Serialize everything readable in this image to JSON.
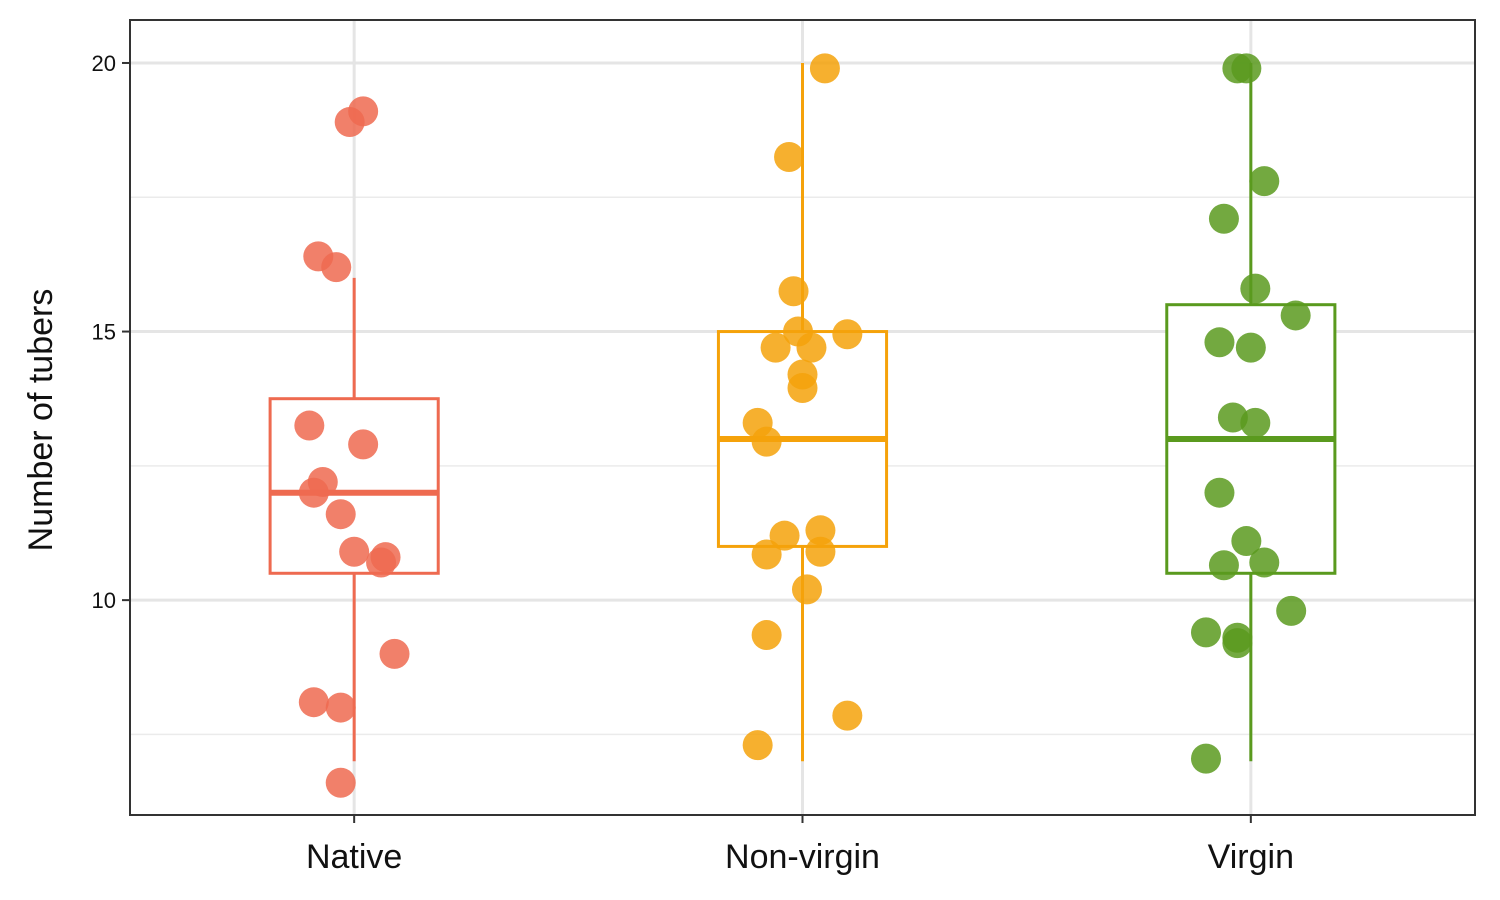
{
  "chart_data": {
    "type": "box",
    "title": "",
    "xlabel": "",
    "ylabel": "Number of tubers",
    "categories": [
      "Native",
      "Non-virgin",
      "Virgin"
    ],
    "ylim": [
      6.0,
      20.8
    ],
    "yticks": [
      10,
      15,
      20
    ],
    "y_minor_ticks": [
      7.5,
      12.5,
      17.5
    ],
    "grid": true,
    "legend": "none",
    "series": [
      {
        "category": "Native",
        "color": "#EE6A50",
        "box": {
          "lower_whisker": 7.0,
          "q1": 10.5,
          "median": 12.0,
          "q3": 13.75,
          "upper_whisker": 16.0
        },
        "points": [
          {
            "dx": 0.02,
            "y": 19.1
          },
          {
            "dx": -0.01,
            "y": 18.9
          },
          {
            "dx": -0.08,
            "y": 16.4
          },
          {
            "dx": -0.04,
            "y": 16.2
          },
          {
            "dx": -0.1,
            "y": 13.25
          },
          {
            "dx": 0.02,
            "y": 12.9
          },
          {
            "dx": -0.07,
            "y": 12.2
          },
          {
            "dx": -0.09,
            "y": 12.0
          },
          {
            "dx": -0.03,
            "y": 11.6
          },
          {
            "dx": 0.0,
            "y": 10.9
          },
          {
            "dx": 0.07,
            "y": 10.8
          },
          {
            "dx": 0.06,
            "y": 10.7
          },
          {
            "dx": 0.09,
            "y": 9.0
          },
          {
            "dx": -0.09,
            "y": 8.1
          },
          {
            "dx": -0.03,
            "y": 8.0
          },
          {
            "dx": -0.03,
            "y": 6.6
          }
        ]
      },
      {
        "category": "Non-virgin",
        "color": "#F5A20A",
        "box": {
          "lower_whisker": 7.0,
          "q1": 11.0,
          "median": 13.0,
          "q3": 15.0,
          "upper_whisker": 20.0
        },
        "points": [
          {
            "dx": 0.05,
            "y": 19.9
          },
          {
            "dx": -0.03,
            "y": 18.25
          },
          {
            "dx": -0.02,
            "y": 15.75
          },
          {
            "dx": -0.01,
            "y": 15.0
          },
          {
            "dx": 0.1,
            "y": 14.95
          },
          {
            "dx": -0.06,
            "y": 14.7
          },
          {
            "dx": 0.02,
            "y": 14.7
          },
          {
            "dx": 0.0,
            "y": 14.2
          },
          {
            "dx": 0.0,
            "y": 13.95
          },
          {
            "dx": -0.1,
            "y": 13.3
          },
          {
            "dx": -0.08,
            "y": 12.95
          },
          {
            "dx": 0.04,
            "y": 11.3
          },
          {
            "dx": -0.04,
            "y": 11.2
          },
          {
            "dx": -0.08,
            "y": 10.85
          },
          {
            "dx": 0.04,
            "y": 10.9
          },
          {
            "dx": 0.01,
            "y": 10.2
          },
          {
            "dx": -0.08,
            "y": 9.35
          },
          {
            "dx": 0.1,
            "y": 7.85
          },
          {
            "dx": -0.1,
            "y": 7.3
          }
        ]
      },
      {
        "category": "Virgin",
        "color": "#5A9A1E",
        "box": {
          "lower_whisker": 7.0,
          "q1": 10.5,
          "median": 13.0,
          "q3": 15.5,
          "upper_whisker": 20.0
        },
        "points": [
          {
            "dx": -0.03,
            "y": 19.9
          },
          {
            "dx": -0.01,
            "y": 19.9
          },
          {
            "dx": 0.03,
            "y": 17.8
          },
          {
            "dx": -0.06,
            "y": 17.1
          },
          {
            "dx": 0.01,
            "y": 15.8
          },
          {
            "dx": 0.1,
            "y": 15.3
          },
          {
            "dx": -0.07,
            "y": 14.8
          },
          {
            "dx": 0.0,
            "y": 14.7
          },
          {
            "dx": -0.04,
            "y": 13.4
          },
          {
            "dx": 0.01,
            "y": 13.3
          },
          {
            "dx": -0.07,
            "y": 12.0
          },
          {
            "dx": -0.01,
            "y": 11.1
          },
          {
            "dx": -0.06,
            "y": 10.65
          },
          {
            "dx": 0.03,
            "y": 10.7
          },
          {
            "dx": 0.09,
            "y": 9.8
          },
          {
            "dx": -0.1,
            "y": 9.4
          },
          {
            "dx": -0.03,
            "y": 9.3
          },
          {
            "dx": -0.03,
            "y": 9.2
          },
          {
            "dx": -0.1,
            "y": 7.05
          }
        ]
      }
    ]
  }
}
